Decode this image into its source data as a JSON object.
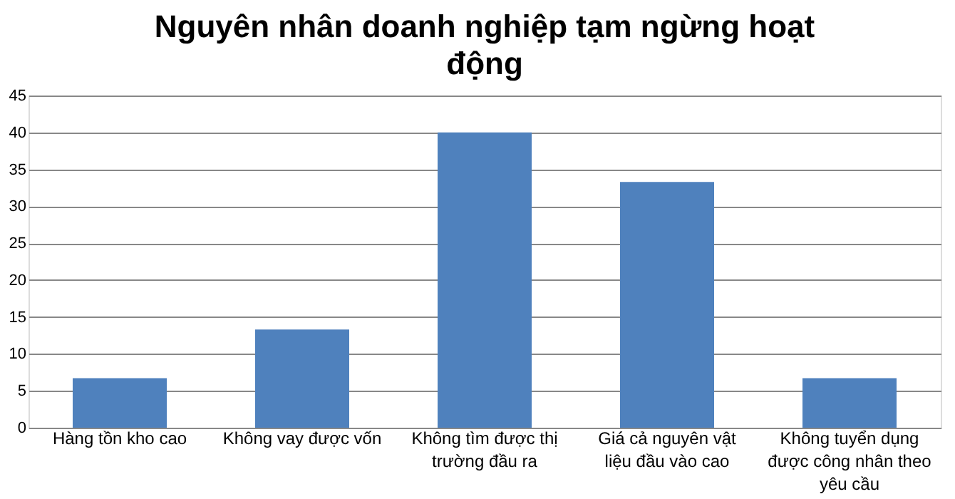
{
  "chart_data": {
    "type": "bar",
    "title": "Nguyên nhân doanh nghiệp tạm ngừng hoạt động",
    "categories": [
      "Hàng tồn kho cao",
      "Không vay  được vốn",
      "Không tìm được thị trường đầu ra",
      "Giá cả nguyên vật liệu đầu vào  cao",
      "Không tuyển dụng được công nhân theo yêu cầu"
    ],
    "values": [
      6.7,
      13.3,
      40,
      33.3,
      6.7
    ],
    "color": "#4f81bd",
    "ylim": [
      0,
      45
    ],
    "yticks": [
      0,
      5,
      10,
      15,
      20,
      25,
      30,
      35,
      40,
      45
    ],
    "grid": "y"
  }
}
